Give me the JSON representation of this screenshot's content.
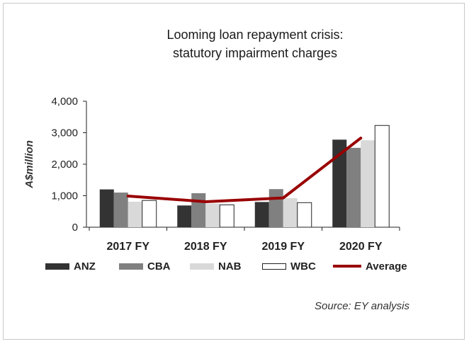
{
  "chart_data": {
    "type": "bar",
    "title_lines": [
      "Looming loan repayment crisis:",
      "statutory impairment charges"
    ],
    "ylabel": "A$million",
    "xlabel": "",
    "categories": [
      "2017 FY",
      "2018 FY",
      "2019 FY",
      "2020 FY"
    ],
    "ylim": [
      0,
      4000
    ],
    "yticks": [
      0,
      1000,
      2000,
      3000,
      4000
    ],
    "ytick_labels": [
      "0",
      "1,000",
      "2,000",
      "3,000",
      "4,000"
    ],
    "series": [
      {
        "name": "ANZ",
        "values": [
          1200,
          690,
          800,
          2780
        ],
        "color": "#333333",
        "style": "bar"
      },
      {
        "name": "CBA",
        "values": [
          1100,
          1080,
          1210,
          2520
        ],
        "color": "#808080",
        "style": "bar"
      },
      {
        "name": "NAB",
        "values": [
          810,
          750,
          920,
          2760
        ],
        "color": "#d9d9d9",
        "style": "bar"
      },
      {
        "name": "WBC",
        "values": [
          850,
          710,
          780,
          3230
        ],
        "color": "#ffffff",
        "style": "bar"
      },
      {
        "name": "Average",
        "values": [
          990,
          810,
          930,
          2830
        ],
        "color": "#990000",
        "style": "line"
      }
    ],
    "source": "Source: EY analysis"
  }
}
